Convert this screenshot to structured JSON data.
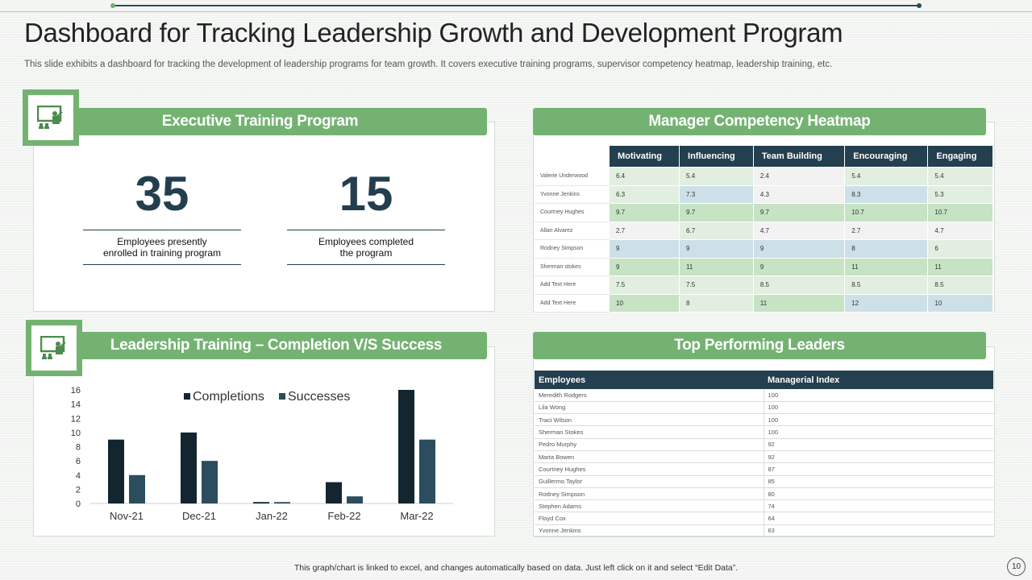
{
  "title": "Dashboard for Tracking Leadership Growth and Development Program",
  "subtitle": "This slide exhibits a dashboard for tracking the development of leadership programs for team growth. It covers executive training programs, supervisor competency heatmap, leadership training, etc.",
  "executive": {
    "title": "Executive Training Program",
    "kpis": [
      {
        "value": "35",
        "label_line1": "Employees presently",
        "label_line2": "enrolled in training program"
      },
      {
        "value": "15",
        "label_line1": "Employees completed",
        "label_line2": "the program"
      }
    ]
  },
  "heatmap": {
    "title": "Manager Competency Heatmap",
    "columns": [
      "Motivating",
      "Influencing",
      "Team Building",
      "Encouraging",
      "Engaging"
    ],
    "rows": [
      {
        "name": "Valerie Underwood",
        "values": [
          "6.4",
          "5.4",
          "2.4",
          "5.4",
          "5.4"
        ]
      },
      {
        "name": "Yvonne Jenkins",
        "values": [
          "6.3",
          "7.3",
          "4.3",
          "8.3",
          "5.3"
        ]
      },
      {
        "name": "Courtney Hughes",
        "values": [
          "9.7",
          "9.7",
          "9.7",
          "10.7",
          "10.7"
        ]
      },
      {
        "name": "Allan Alvarez",
        "values": [
          "2.7",
          "6.7",
          "4.7",
          "2.7",
          "4.7"
        ]
      },
      {
        "name": "Rodney Simpson",
        "values": [
          "9",
          "9",
          "9",
          "8",
          "6"
        ]
      },
      {
        "name": "Sherman stokes",
        "values": [
          "9",
          "11",
          "9",
          "11",
          "11"
        ]
      },
      {
        "name": "Add Text Here",
        "values": [
          "7.5",
          "7.5",
          "8.5",
          "8.5",
          "8.5"
        ]
      },
      {
        "name": "Add Text Here",
        "values": [
          "10",
          "8",
          "11",
          "12",
          "10"
        ]
      }
    ],
    "colors": {
      "high": "#c6e3c4",
      "mid": "#e2efe0",
      "low": "#f2f2f2",
      "top": "#cde0e8"
    }
  },
  "leadership": {
    "title": "Leadership Training – Completion V/S Success"
  },
  "chart_data": {
    "type": "bar",
    "categories": [
      "Nov-21",
      "Dec-21",
      "Jan-22",
      "Feb-22",
      "Mar-22"
    ],
    "series": [
      {
        "name": "Completions",
        "values": [
          9,
          10,
          0.2,
          3,
          16
        ],
        "color": "#13252e"
      },
      {
        "name": "Successes",
        "values": [
          4,
          6,
          0.2,
          1,
          9
        ],
        "color": "#2b4d5e"
      }
    ],
    "yticks": [
      "0",
      "2",
      "4",
      "6",
      "8",
      "10",
      "12",
      "14",
      "16"
    ],
    "ylim": [
      0,
      16
    ],
    "legend": "top"
  },
  "top_leaders": {
    "title": "Top Performing Leaders",
    "headers": [
      "Employees",
      "Managerial Index"
    ],
    "rows": [
      [
        "Meredith Rodgers",
        "100"
      ],
      [
        "Lila Wong",
        "100"
      ],
      [
        "Traci Wilson",
        "100"
      ],
      [
        "Sherman Stokes",
        "100"
      ],
      [
        "Pedro Murphy",
        "92"
      ],
      [
        "Marta Bowen",
        "92"
      ],
      [
        "Courtney Hughes",
        "87"
      ],
      [
        "Guillermo Taylor",
        "85"
      ],
      [
        "Rodney Simpson",
        "80"
      ],
      [
        "Stephen Adams",
        "74"
      ],
      [
        "Floyd Cox",
        "64"
      ],
      [
        "Yvonne Jenkins",
        "63"
      ]
    ]
  },
  "footer": "This graph/chart is linked to excel, and changes automatically based on data. Just left click on it and select “Edit Data”.",
  "page_number": "10"
}
